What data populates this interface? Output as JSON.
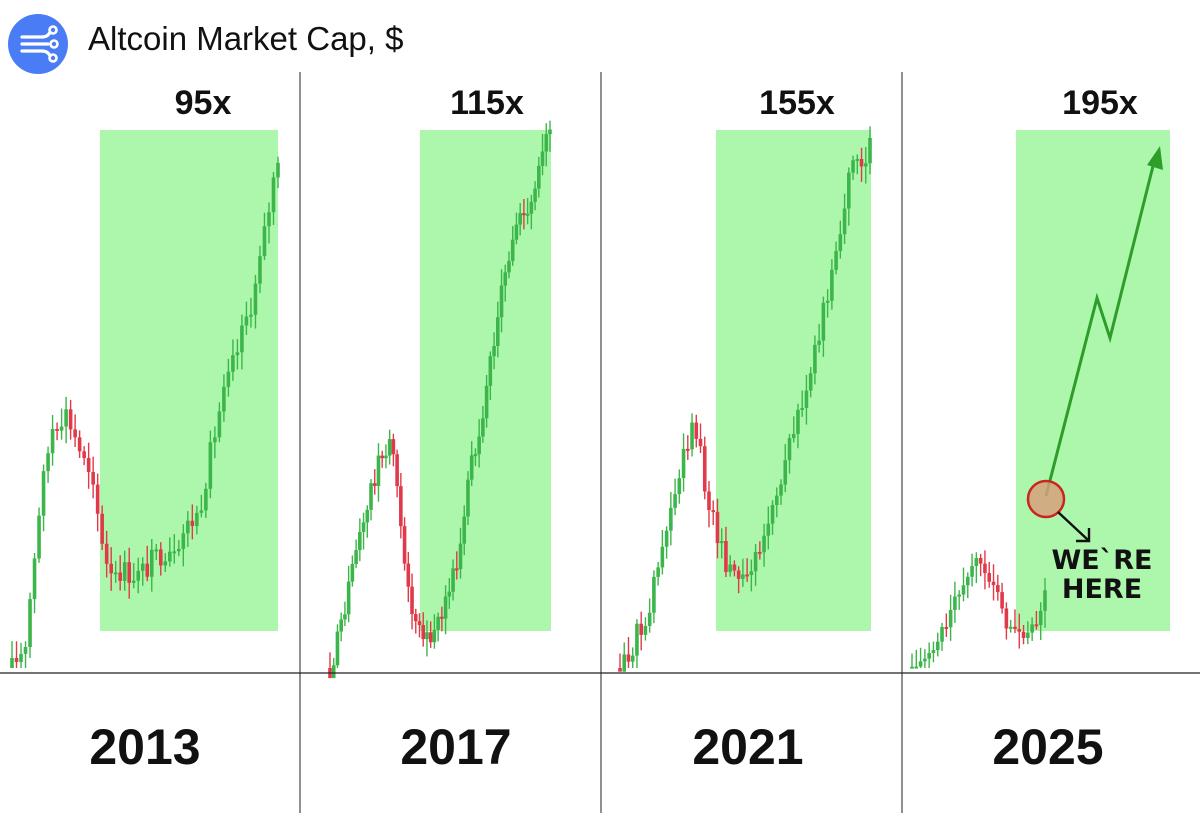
{
  "header": {
    "title": "Altcoin Market Cap, $",
    "logo_icon": "data-streams-icon",
    "logo_color": "#4a7cf5"
  },
  "colors": {
    "up": "#3cb64a",
    "down": "#e03a4a",
    "highlight": "#adf7ac",
    "projection": "#2e9d2a",
    "marker_fill": "#d6a07a",
    "marker_stroke": "#c8261e"
  },
  "chart_data": [
    {
      "type": "line",
      "year_label": "2013",
      "multiplier_label": "95x",
      "x": [
        0,
        0.05,
        0.1,
        0.15,
        0.2,
        0.24,
        0.3,
        0.36,
        0.42,
        0.48,
        0.55,
        0.62,
        0.7,
        0.78,
        0.85,
        0.92,
        1.0
      ],
      "y": [
        0,
        0.05,
        0.3,
        0.47,
        0.5,
        0.45,
        0.35,
        0.2,
        0.19,
        0.18,
        0.22,
        0.25,
        0.3,
        0.5,
        0.62,
        0.75,
        1.0
      ],
      "highlight_from": 0.32,
      "highlight_to": 1.0
    },
    {
      "type": "line",
      "year_label": "2017",
      "multiplier_label": "115x",
      "x": [
        0,
        0.05,
        0.12,
        0.2,
        0.27,
        0.3,
        0.33,
        0.36,
        0.4,
        0.45,
        0.52,
        0.58,
        0.63,
        0.7,
        0.78,
        0.85,
        0.92,
        1.0
      ],
      "y": [
        0,
        0.08,
        0.22,
        0.35,
        0.43,
        0.35,
        0.25,
        0.12,
        0.06,
        0.05,
        0.12,
        0.2,
        0.35,
        0.5,
        0.7,
        0.83,
        0.88,
        1.0
      ],
      "highlight_from": 0.36,
      "highlight_to": 1.0
    },
    {
      "type": "line",
      "year_label": "2021",
      "multiplier_label": "155x",
      "x": [
        0,
        0.06,
        0.12,
        0.2,
        0.27,
        0.3,
        0.36,
        0.42,
        0.48,
        0.55,
        0.62,
        0.7,
        0.78,
        0.85,
        0.9,
        0.95,
        1.0
      ],
      "y": [
        0,
        0.05,
        0.12,
        0.28,
        0.42,
        0.45,
        0.3,
        0.2,
        0.18,
        0.2,
        0.32,
        0.45,
        0.58,
        0.75,
        0.88,
        0.95,
        0.97
      ],
      "highlight_from": 0.38,
      "highlight_to": 0.98
    },
    {
      "type": "line",
      "year_label": "2025",
      "multiplier_label": "195x",
      "x": [
        0,
        0.08,
        0.15,
        0.22,
        0.27,
        0.32,
        0.38,
        0.43,
        0.48,
        0.53
      ],
      "y": [
        0,
        0.05,
        0.2,
        0.35,
        0.42,
        0.32,
        0.16,
        0.12,
        0.14,
        0.27
      ],
      "highlight_from": 0.43,
      "highlight_to": 1.0,
      "annotation": "WE`RE HERE",
      "projection": true
    }
  ]
}
